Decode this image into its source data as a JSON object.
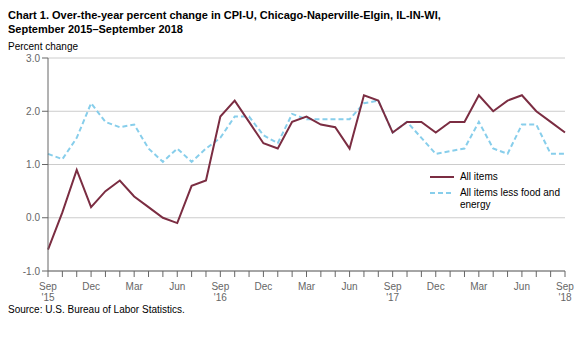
{
  "chart_data": {
    "type": "line",
    "title": "Chart 1. Over-the-year percent change in CPI-U, Chicago-Naperville-Elgin, IL-IN-WI,\nSeptember 2015–September 2018",
    "y_label": "Percent change",
    "source": "Source: U.S. Bureau of Labor Statistics.",
    "categories": [
      "Sep\n'15",
      null,
      null,
      "Dec",
      null,
      null,
      "Mar",
      null,
      null,
      "Jun",
      null,
      null,
      "Sep\n'16",
      null,
      null,
      "Dec",
      null,
      null,
      "Mar",
      null,
      null,
      "Jun",
      null,
      null,
      "Sep\n'17",
      null,
      null,
      "Dec",
      null,
      null,
      "Mar",
      null,
      null,
      "Jun",
      null,
      null,
      "Sep\n'18"
    ],
    "series": [
      {
        "name": "All items",
        "color": "#7B2D42",
        "line_style": "solid",
        "values": [
          -0.6,
          0.1,
          0.9,
          0.2,
          0.5,
          0.7,
          0.4,
          0.2,
          0.0,
          -0.1,
          0.6,
          0.7,
          1.9,
          2.2,
          1.8,
          1.4,
          1.3,
          1.8,
          1.9,
          1.75,
          1.7,
          1.3,
          2.3,
          2.2,
          1.6,
          1.8,
          1.8,
          1.6,
          1.8,
          1.8,
          2.3,
          2.0,
          2.2,
          2.3,
          2.0,
          1.8,
          1.6
        ]
      },
      {
        "name": "All items less food and\nenergy",
        "color": "#87CEEB",
        "line_style": "dashed",
        "values": [
          1.2,
          1.1,
          1.5,
          2.15,
          1.8,
          1.7,
          1.75,
          1.3,
          1.05,
          1.3,
          1.05,
          1.3,
          1.5,
          1.9,
          1.9,
          1.55,
          1.4,
          1.95,
          1.85,
          1.85,
          1.85,
          1.85,
          2.15,
          2.2,
          1.6,
          1.8,
          1.5,
          1.2,
          1.25,
          1.3,
          1.8,
          1.3,
          1.2,
          1.75,
          1.75,
          1.2,
          1.2
        ]
      }
    ],
    "ylim": [
      -1.0,
      3.0
    ],
    "yticks": [
      {
        "value": -1.0,
        "label": "-1.0"
      },
      {
        "value": 0.0,
        "label": "0.0"
      },
      {
        "value": 1.0,
        "label": "1.0"
      },
      {
        "value": 2.0,
        "label": "2.0"
      },
      {
        "value": 3.0,
        "label": "3.0"
      }
    ],
    "grid": true,
    "legend": "lower right"
  }
}
